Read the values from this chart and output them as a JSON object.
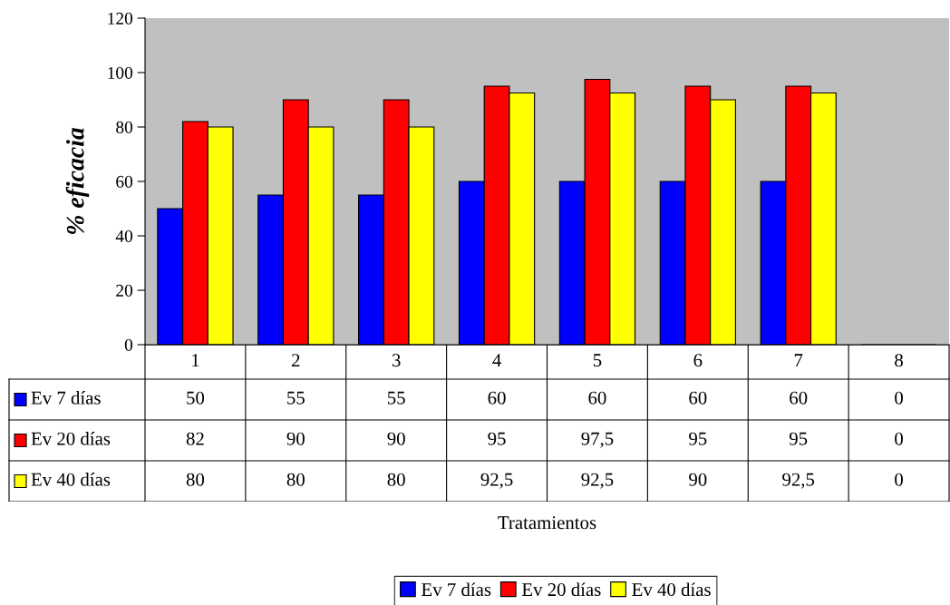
{
  "chart_data": {
    "type": "bar",
    "annotations": [
      "Tratamientos"
    ],
    "ylabel": "% eficacia",
    "categories": [
      "1",
      "2",
      "3",
      "4",
      "5",
      "6",
      "7",
      "8"
    ],
    "series": [
      {
        "name": "Ev 7 días",
        "color": "#0000ff",
        "values": [
          50,
          55,
          55,
          60,
          60,
          60,
          60,
          0
        ],
        "value_labels": [
          "50",
          "55",
          "55",
          "60",
          "60",
          "60",
          "60",
          "0"
        ]
      },
      {
        "name": "Ev 20 días",
        "color": "#ff0000",
        "values": [
          82,
          90,
          90,
          95,
          97.5,
          95,
          95,
          0
        ],
        "value_labels": [
          "82",
          "90",
          "90",
          "95",
          "97,5",
          "95",
          "95",
          "0"
        ]
      },
      {
        "name": "Ev 40 días",
        "color": "#ffff00",
        "values": [
          80,
          80,
          80,
          92.5,
          92.5,
          90,
          92.5,
          0
        ],
        "value_labels": [
          "80",
          "80",
          "80",
          "92,5",
          "92,5",
          "90",
          "92,5",
          "0"
        ]
      }
    ],
    "ylim": [
      0,
      120
    ],
    "yticks": [
      0,
      20,
      40,
      60,
      80,
      100,
      120
    ],
    "grid": false,
    "legend": "bottom"
  }
}
